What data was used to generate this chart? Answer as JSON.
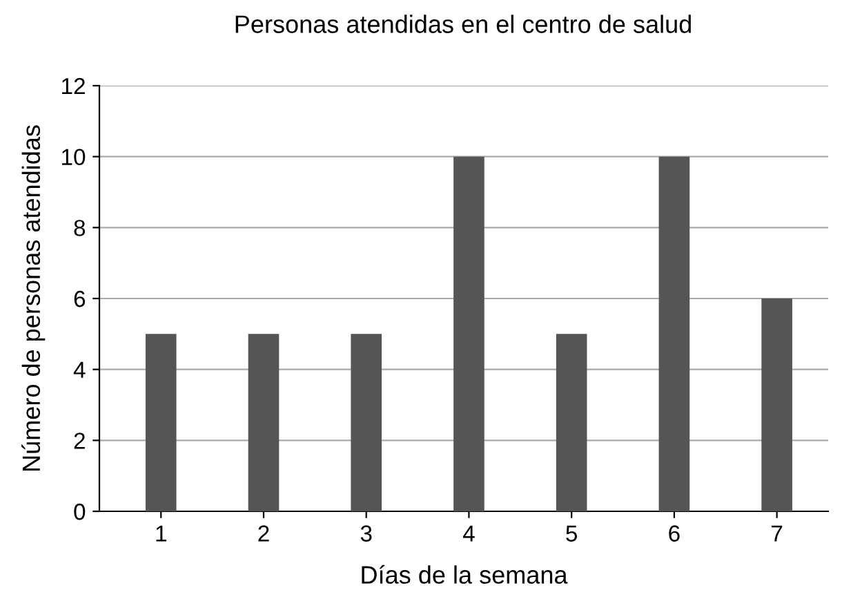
{
  "chart_data": {
    "type": "bar",
    "title": "Personas atendidas en el centro de salud",
    "xlabel": "Días de la semana",
    "ylabel": "Número de personas atendidas",
    "categories": [
      "1",
      "2",
      "3",
      "4",
      "5",
      "6",
      "7"
    ],
    "values": [
      5,
      5,
      5,
      10,
      5,
      10,
      6
    ],
    "color": "#555555",
    "ylim": [
      0,
      12
    ],
    "yticks": [
      0,
      2,
      4,
      6,
      8,
      10,
      12
    ],
    "grid": "y"
  }
}
